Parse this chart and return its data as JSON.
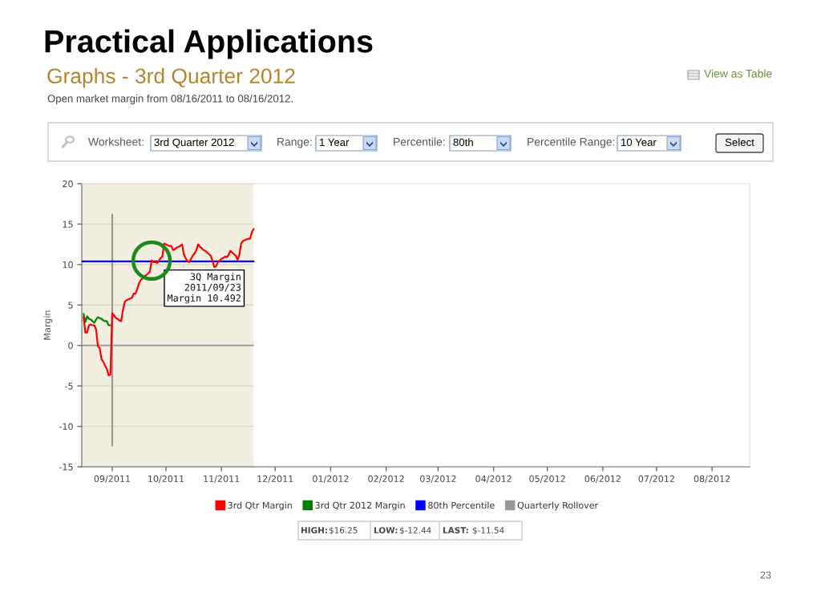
{
  "chart_data": {
    "type": "line",
    "title": "Practical Applications",
    "subtitle": "Graphs - 3rd Quarter 2012",
    "ylabel": "Margin",
    "xlim": [
      "2011-08-15",
      "2012-08-22"
    ],
    "ylim": [
      -15,
      20
    ],
    "yticks": [
      -15,
      -10,
      -5,
      0,
      5,
      10,
      15,
      20
    ],
    "xticks": [
      {
        "value": "2011-09-01",
        "label": "09/2011"
      },
      {
        "value": "2011-10-01",
        "label": "10/2011"
      },
      {
        "value": "2011-11-01",
        "label": "11/2011"
      },
      {
        "value": "2011-12-01",
        "label": "12/2011"
      },
      {
        "value": "2012-01-01",
        "label": "01/2012"
      },
      {
        "value": "2012-02-01",
        "label": "02/2012"
      },
      {
        "value": "2012-03-01",
        "label": "03/2012"
      },
      {
        "value": "2012-04-01",
        "label": "04/2012"
      },
      {
        "value": "2012-05-01",
        "label": "05/2012"
      },
      {
        "value": "2012-06-01",
        "label": "06/2012"
      },
      {
        "value": "2012-07-01",
        "label": "07/2012"
      },
      {
        "value": "2012-08-01",
        "label": "08/2012"
      }
    ],
    "grid": "y",
    "legend": "bottom",
    "bands": [
      {
        "axis": "x",
        "from": "2011-08-15",
        "to": "2011-11-19",
        "color": "#f3efe0"
      }
    ],
    "ref_lines": [
      {
        "axis": "y",
        "value": 0,
        "color": "#999999"
      }
    ],
    "series": [
      {
        "name": "3rd Qtr Margin",
        "color": "#ff0000",
        "x": [
          "2011-08-16",
          "2011-08-17",
          "2011-08-18",
          "2011-08-19",
          "2011-08-20",
          "2011-08-21",
          "2011-08-22",
          "2011-08-23",
          "2011-08-24",
          "2011-08-25",
          "2011-08-26",
          "2011-08-27",
          "2011-08-28",
          "2011-08-29",
          "2011-08-30",
          "2011-08-31",
          "2011-09-01",
          "2011-09-02",
          "2011-09-03",
          "2011-09-04",
          "2011-09-05",
          "2011-09-06",
          "2011-09-07",
          "2011-09-08",
          "2011-09-09",
          "2011-09-10",
          "2011-09-11",
          "2011-09-12",
          "2011-09-13",
          "2011-09-14",
          "2011-09-15",
          "2011-09-16",
          "2011-09-17",
          "2011-09-18",
          "2011-09-19",
          "2011-09-20",
          "2011-09-21",
          "2011-09-22",
          "2011-09-23",
          "2011-09-24",
          "2011-09-25",
          "2011-09-26",
          "2011-09-27",
          "2011-09-28",
          "2011-09-29",
          "2011-09-30",
          "2011-10-01",
          "2011-10-02",
          "2011-10-03",
          "2011-10-04",
          "2011-10-05",
          "2011-10-06",
          "2011-10-07",
          "2011-10-08",
          "2011-10-09",
          "2011-10-10",
          "2011-10-11",
          "2011-10-12",
          "2011-10-13",
          "2011-10-14",
          "2011-10-15",
          "2011-10-16",
          "2011-10-17",
          "2011-10-18",
          "2011-10-19",
          "2011-10-20",
          "2011-10-21",
          "2011-10-22",
          "2011-10-23",
          "2011-10-24",
          "2011-10-25",
          "2011-10-26",
          "2011-10-27",
          "2011-10-28",
          "2011-10-29",
          "2011-10-30",
          "2011-10-31",
          "2011-11-01",
          "2011-11-02",
          "2011-11-03",
          "2011-11-04",
          "2011-11-05",
          "2011-11-06",
          "2011-11-07",
          "2011-11-08",
          "2011-11-09",
          "2011-11-10",
          "2011-11-11",
          "2011-11-12",
          "2011-11-13",
          "2011-11-14",
          "2011-11-15",
          "2011-11-16",
          "2011-11-17",
          "2011-11-18",
          "2011-11-19"
        ],
        "values": [
          3.5,
          1.6,
          1.6,
          2.5,
          2.6,
          2.5,
          2.5,
          2.0,
          -0.1,
          -0.3,
          -1.7,
          -2.0,
          -2.5,
          -2.9,
          -3.7,
          -3.6,
          4.0,
          3.7,
          3.4,
          3.3,
          3.1,
          3.0,
          4.4,
          5.4,
          5.6,
          5.7,
          5.8,
          5.9,
          6.4,
          6.4,
          7.0,
          7.7,
          8.1,
          8.3,
          8.6,
          8.7,
          8.9,
          9.1,
          10.492,
          10.3,
          10.3,
          10.2,
          10.4,
          10.8,
          11.0,
          12.6,
          12.5,
          12.4,
          12.3,
          12.3,
          11.8,
          11.9,
          12.1,
          12.2,
          12.3,
          12.5,
          11.3,
          10.8,
          10.4,
          10.3,
          10.7,
          11.1,
          11.4,
          11.8,
          12.5,
          12.2,
          12.0,
          11.8,
          11.7,
          11.5,
          11.3,
          11.1,
          10.5,
          9.7,
          9.8,
          10.3,
          10.5,
          10.7,
          10.8,
          11.0,
          10.9,
          11.2,
          11.7,
          11.5,
          11.3,
          11.1,
          10.6,
          11.2,
          12.6,
          12.9,
          13.0,
          13.1,
          13.2,
          13.2,
          14.0,
          14.4
        ]
      },
      {
        "name": "3rd Qtr 2012 Margin",
        "color": "#008000",
        "x": [
          "2011-08-16",
          "2011-08-17",
          "2011-08-18",
          "2011-08-19",
          "2011-08-20",
          "2011-08-21",
          "2011-08-22",
          "2011-08-23",
          "2011-08-24",
          "2011-08-25",
          "2011-08-26",
          "2011-08-27",
          "2011-08-28",
          "2011-08-29",
          "2011-08-30",
          "2011-08-31"
        ],
        "values": [
          3.9,
          2.9,
          3.6,
          3.3,
          3.2,
          3.0,
          2.8,
          3.2,
          3.5,
          3.4,
          3.3,
          3.1,
          3.0,
          3.0,
          2.5,
          2.5
        ]
      },
      {
        "name": "80th Percentile",
        "color": "#0000ff",
        "x": [
          "2011-08-15",
          "2011-11-19"
        ],
        "values": [
          10.4,
          10.4
        ]
      },
      {
        "name": "Quarterly Rollover",
        "color": "#999999",
        "x": [
          "2011-09-01",
          "2011-09-01"
        ],
        "values": [
          -12.4,
          16.2
        ]
      }
    ],
    "annotations": [
      "Open market margin from 08/16/2011 to 08/16/2012.",
      "View as Table",
      "Worksheet:",
      "3rd Quarter 2012",
      "Range:",
      "1 Year",
      "Percentile:",
      "80th",
      "Percentile Range:",
      "10 Year",
      "Select",
      "HIGH:",
      "$16.25",
      "LOW:",
      "$-12.44",
      "LAST:",
      "$-11.54",
      "23",
      {
        "text": "3Q Margin\n2011/09/23\nMargin 10.492",
        "x": "2011-09-23",
        "y": 10.492
      }
    ]
  }
}
